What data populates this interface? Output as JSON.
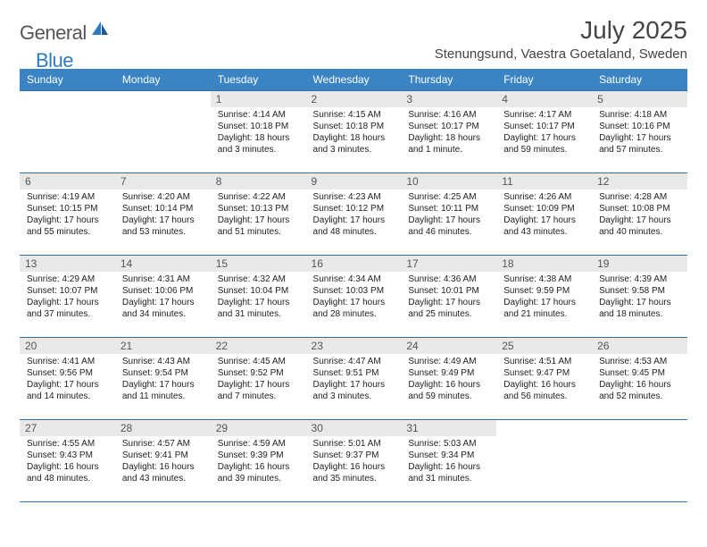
{
  "logo": {
    "general": "General",
    "blue": "Blue"
  },
  "title": "July 2025",
  "location": "Stenungsund, Vaestra Goetaland, Sweden",
  "colors": {
    "header_bg": "#3b84c4",
    "header_fg": "#ffffff",
    "rule": "#2f6fa8",
    "daynum_bg": "#e9e9e9",
    "logo_blue": "#2f7bbf",
    "text": "#333333"
  },
  "day_headers": [
    "Sunday",
    "Monday",
    "Tuesday",
    "Wednesday",
    "Thursday",
    "Friday",
    "Saturday"
  ],
  "weeks": [
    [
      null,
      null,
      {
        "n": "1",
        "sr": "Sunrise: 4:14 AM",
        "ss": "Sunset: 10:18 PM",
        "dl": "Daylight: 18 hours and 3 minutes."
      },
      {
        "n": "2",
        "sr": "Sunrise: 4:15 AM",
        "ss": "Sunset: 10:18 PM",
        "dl": "Daylight: 18 hours and 3 minutes."
      },
      {
        "n": "3",
        "sr": "Sunrise: 4:16 AM",
        "ss": "Sunset: 10:17 PM",
        "dl": "Daylight: 18 hours and 1 minute."
      },
      {
        "n": "4",
        "sr": "Sunrise: 4:17 AM",
        "ss": "Sunset: 10:17 PM",
        "dl": "Daylight: 17 hours and 59 minutes."
      },
      {
        "n": "5",
        "sr": "Sunrise: 4:18 AM",
        "ss": "Sunset: 10:16 PM",
        "dl": "Daylight: 17 hours and 57 minutes."
      }
    ],
    [
      {
        "n": "6",
        "sr": "Sunrise: 4:19 AM",
        "ss": "Sunset: 10:15 PM",
        "dl": "Daylight: 17 hours and 55 minutes."
      },
      {
        "n": "7",
        "sr": "Sunrise: 4:20 AM",
        "ss": "Sunset: 10:14 PM",
        "dl": "Daylight: 17 hours and 53 minutes."
      },
      {
        "n": "8",
        "sr": "Sunrise: 4:22 AM",
        "ss": "Sunset: 10:13 PM",
        "dl": "Daylight: 17 hours and 51 minutes."
      },
      {
        "n": "9",
        "sr": "Sunrise: 4:23 AM",
        "ss": "Sunset: 10:12 PM",
        "dl": "Daylight: 17 hours and 48 minutes."
      },
      {
        "n": "10",
        "sr": "Sunrise: 4:25 AM",
        "ss": "Sunset: 10:11 PM",
        "dl": "Daylight: 17 hours and 46 minutes."
      },
      {
        "n": "11",
        "sr": "Sunrise: 4:26 AM",
        "ss": "Sunset: 10:09 PM",
        "dl": "Daylight: 17 hours and 43 minutes."
      },
      {
        "n": "12",
        "sr": "Sunrise: 4:28 AM",
        "ss": "Sunset: 10:08 PM",
        "dl": "Daylight: 17 hours and 40 minutes."
      }
    ],
    [
      {
        "n": "13",
        "sr": "Sunrise: 4:29 AM",
        "ss": "Sunset: 10:07 PM",
        "dl": "Daylight: 17 hours and 37 minutes."
      },
      {
        "n": "14",
        "sr": "Sunrise: 4:31 AM",
        "ss": "Sunset: 10:06 PM",
        "dl": "Daylight: 17 hours and 34 minutes."
      },
      {
        "n": "15",
        "sr": "Sunrise: 4:32 AM",
        "ss": "Sunset: 10:04 PM",
        "dl": "Daylight: 17 hours and 31 minutes."
      },
      {
        "n": "16",
        "sr": "Sunrise: 4:34 AM",
        "ss": "Sunset: 10:03 PM",
        "dl": "Daylight: 17 hours and 28 minutes."
      },
      {
        "n": "17",
        "sr": "Sunrise: 4:36 AM",
        "ss": "Sunset: 10:01 PM",
        "dl": "Daylight: 17 hours and 25 minutes."
      },
      {
        "n": "18",
        "sr": "Sunrise: 4:38 AM",
        "ss": "Sunset: 9:59 PM",
        "dl": "Daylight: 17 hours and 21 minutes."
      },
      {
        "n": "19",
        "sr": "Sunrise: 4:39 AM",
        "ss": "Sunset: 9:58 PM",
        "dl": "Daylight: 17 hours and 18 minutes."
      }
    ],
    [
      {
        "n": "20",
        "sr": "Sunrise: 4:41 AM",
        "ss": "Sunset: 9:56 PM",
        "dl": "Daylight: 17 hours and 14 minutes."
      },
      {
        "n": "21",
        "sr": "Sunrise: 4:43 AM",
        "ss": "Sunset: 9:54 PM",
        "dl": "Daylight: 17 hours and 11 minutes."
      },
      {
        "n": "22",
        "sr": "Sunrise: 4:45 AM",
        "ss": "Sunset: 9:52 PM",
        "dl": "Daylight: 17 hours and 7 minutes."
      },
      {
        "n": "23",
        "sr": "Sunrise: 4:47 AM",
        "ss": "Sunset: 9:51 PM",
        "dl": "Daylight: 17 hours and 3 minutes."
      },
      {
        "n": "24",
        "sr": "Sunrise: 4:49 AM",
        "ss": "Sunset: 9:49 PM",
        "dl": "Daylight: 16 hours and 59 minutes."
      },
      {
        "n": "25",
        "sr": "Sunrise: 4:51 AM",
        "ss": "Sunset: 9:47 PM",
        "dl": "Daylight: 16 hours and 56 minutes."
      },
      {
        "n": "26",
        "sr": "Sunrise: 4:53 AM",
        "ss": "Sunset: 9:45 PM",
        "dl": "Daylight: 16 hours and 52 minutes."
      }
    ],
    [
      {
        "n": "27",
        "sr": "Sunrise: 4:55 AM",
        "ss": "Sunset: 9:43 PM",
        "dl": "Daylight: 16 hours and 48 minutes."
      },
      {
        "n": "28",
        "sr": "Sunrise: 4:57 AM",
        "ss": "Sunset: 9:41 PM",
        "dl": "Daylight: 16 hours and 43 minutes."
      },
      {
        "n": "29",
        "sr": "Sunrise: 4:59 AM",
        "ss": "Sunset: 9:39 PM",
        "dl": "Daylight: 16 hours and 39 minutes."
      },
      {
        "n": "30",
        "sr": "Sunrise: 5:01 AM",
        "ss": "Sunset: 9:37 PM",
        "dl": "Daylight: 16 hours and 35 minutes."
      },
      {
        "n": "31",
        "sr": "Sunrise: 5:03 AM",
        "ss": "Sunset: 9:34 PM",
        "dl": "Daylight: 16 hours and 31 minutes."
      },
      null,
      null
    ]
  ]
}
